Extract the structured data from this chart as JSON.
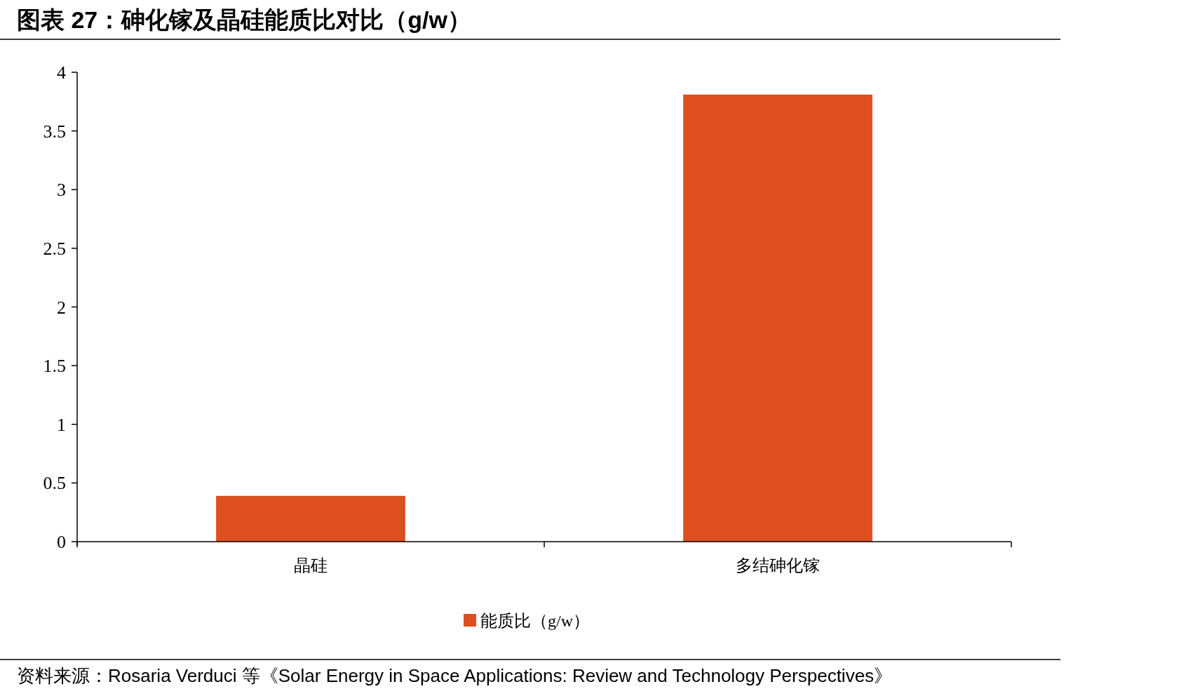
{
  "chart_data": {
    "type": "bar",
    "title": "图表 27：砷化镓及晶硅能质比对比（g/w）",
    "categories": [
      "晶硅",
      "多结砷化镓"
    ],
    "series": [
      {
        "name": "能质比（g/w）",
        "color": "#dd4f1f",
        "values": [
          0.39,
          3.81
        ]
      }
    ],
    "ylim": [
      0,
      4
    ],
    "yticks": [
      0,
      0.5,
      1,
      1.5,
      2,
      2.5,
      3,
      3.5,
      4
    ],
    "grid": false,
    "legend": "bottom",
    "annotations": [
      "资料来源：Rosaria Verduci 等《Solar Energy in Space Applications: Review and Technology Perspectives》"
    ]
  }
}
